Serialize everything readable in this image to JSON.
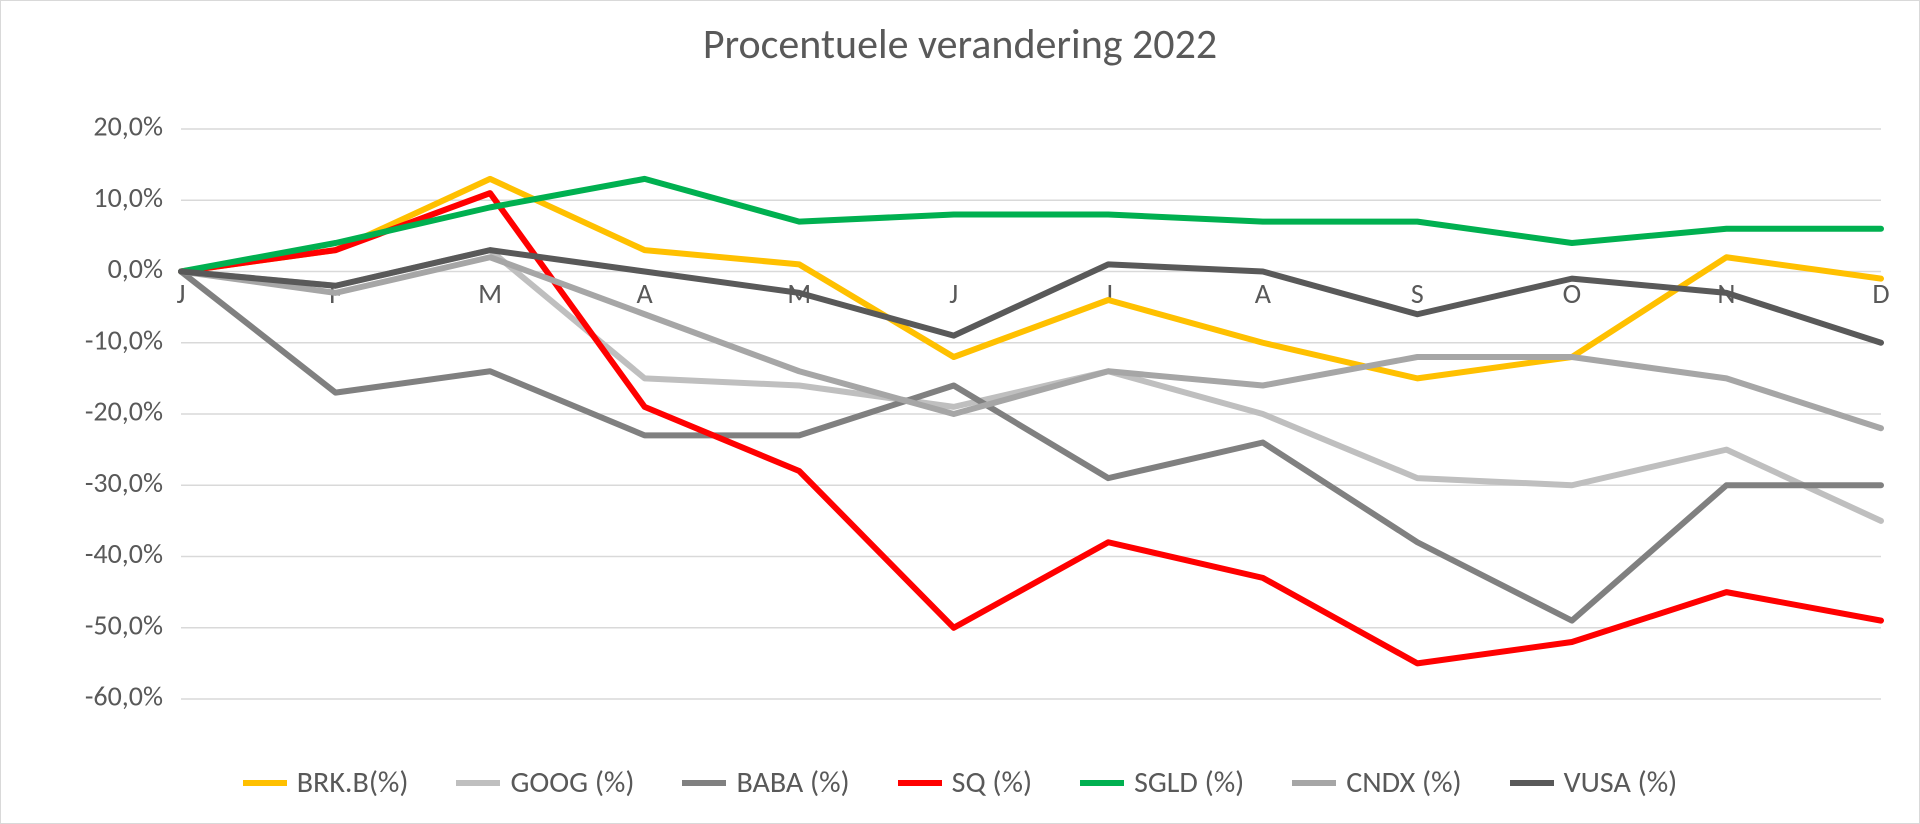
{
  "chart": {
    "type": "line",
    "title": "Procentuele verandering 2022",
    "title_fontsize": 42,
    "title_color": "#595959",
    "background_color": "#ffffff",
    "border_color": "#d9d9d9",
    "grid_color": "#d9d9d9",
    "axis_label_color": "#595959",
    "axis_label_fontsize": 28,
    "line_width": 6,
    "x": {
      "categories": [
        "J",
        "F",
        "M",
        "A",
        "M",
        "J",
        "J",
        "A",
        "S",
        "O",
        "N",
        "D"
      ]
    },
    "y": {
      "min": -60,
      "max": 20,
      "tick_step": 10,
      "ticks": [
        20,
        10,
        0,
        -10,
        -20,
        -30,
        -40,
        -50,
        -60
      ],
      "tick_labels": [
        "20,0%",
        "10,0%",
        "0,0%",
        "-10,0%",
        "-20,0%",
        "-30,0%",
        "-40,0%",
        "-50,0%",
        "-60,0%"
      ]
    },
    "series": [
      {
        "name": "BRK.B(%)",
        "color": "#ffc000",
        "values": [
          0,
          3,
          13,
          3,
          1,
          -12,
          -4,
          -10,
          -15,
          -12,
          2,
          -1
        ]
      },
      {
        "name": "GOOG (%)",
        "color": "#bfbfbf",
        "values": [
          0,
          -2,
          3,
          -15,
          -16,
          -19,
          -14,
          -20,
          -29,
          -30,
          -25,
          -35
        ]
      },
      {
        "name": "BABA (%)",
        "color": "#808080",
        "values": [
          0,
          -17,
          -14,
          -23,
          -23,
          -16,
          -29,
          -24,
          -38,
          -49,
          -30,
          -30
        ]
      },
      {
        "name": "SQ (%)",
        "color": "#ff0000",
        "values": [
          0,
          3,
          11,
          -19,
          -28,
          -50,
          -38,
          -43,
          -55,
          -52,
          -45,
          -49
        ]
      },
      {
        "name": "SGLD (%)",
        "color": "#00b050",
        "values": [
          0,
          4,
          9,
          13,
          7,
          8,
          8,
          7,
          7,
          4,
          6,
          6
        ]
      },
      {
        "name": "CNDX (%)",
        "color": "#a6a6a6",
        "values": [
          0,
          -3,
          2,
          -6,
          -14,
          -20,
          -14,
          -16,
          -12,
          -12,
          -15,
          -22
        ]
      },
      {
        "name": "VUSA (%)",
        "color": "#595959",
        "values": [
          0,
          -2,
          3,
          0,
          -3,
          -9,
          1,
          0,
          -6,
          -1,
          -3,
          -10
        ]
      }
    ]
  }
}
